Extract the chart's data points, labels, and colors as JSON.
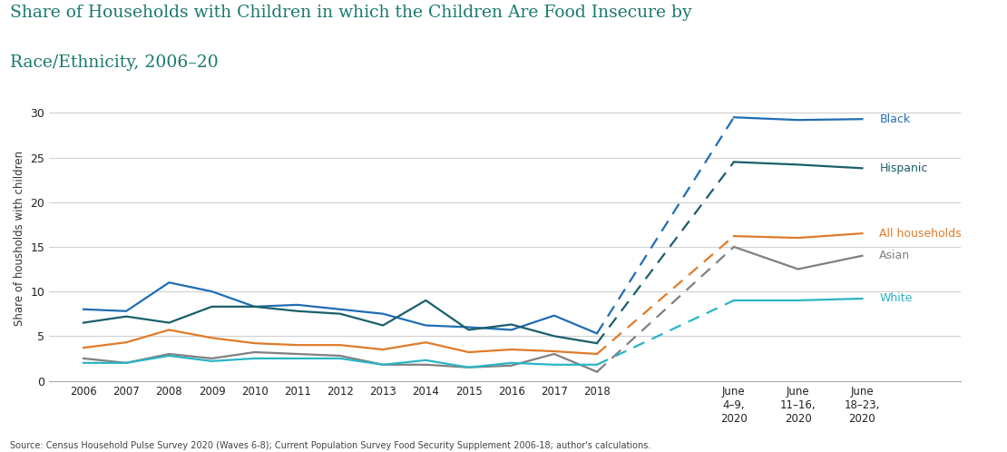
{
  "title_line1": "Share of Households with Children in which the Children Are Food Insecure by",
  "title_line2": "Race/Ethnicity, 2006–20",
  "ylabel": "Share of housholds with children",
  "source": "Source: Census Household Pulse Survey 2020 (Waves 6-8); Current Population Survey Food Security Supplement 2006-18; author's calculations.",
  "title_color": "#1a7a6e",
  "series": {
    "Black": {
      "color": "#1f6db5",
      "solid_values": [
        8.0,
        7.8,
        11.0,
        10.0,
        8.3,
        8.5,
        8.0,
        7.5,
        6.2,
        6.0,
        5.7,
        7.3,
        5.3
      ],
      "june_values": [
        29.5,
        29.2,
        29.3
      ],
      "label": "Black",
      "label_color": "#1f6db5"
    },
    "Hispanic": {
      "color": "#1a5f6a",
      "solid_values": [
        6.5,
        7.2,
        6.5,
        8.3,
        8.3,
        7.8,
        7.5,
        6.2,
        9.0,
        5.7,
        6.3,
        5.0,
        4.2
      ],
      "june_values": [
        24.5,
        24.2,
        23.8
      ],
      "label": "Hispanic",
      "label_color": "#1a5f6a"
    },
    "All_households": {
      "color": "#e07b2a",
      "solid_values": [
        3.7,
        4.3,
        5.7,
        4.8,
        4.2,
        4.0,
        4.0,
        3.5,
        4.3,
        3.2,
        3.5,
        3.3,
        3.0
      ],
      "june_values": [
        16.2,
        16.0,
        16.5
      ],
      "label": "All households",
      "label_color": "#e07b2a"
    },
    "Asian": {
      "color": "#808080",
      "solid_values": [
        2.5,
        2.0,
        3.0,
        2.5,
        3.2,
        3.0,
        2.8,
        1.8,
        1.8,
        1.5,
        1.7,
        3.0,
        1.0
      ],
      "june_values": [
        15.0,
        12.5,
        14.0
      ],
      "label": "Asian",
      "label_color": "#808080"
    },
    "White": {
      "color": "#2ab5c5",
      "solid_values": [
        2.0,
        2.0,
        2.8,
        2.2,
        2.5,
        2.5,
        2.5,
        1.8,
        2.3,
        1.5,
        2.0,
        1.8,
        1.8
      ],
      "june_values": [
        9.0,
        9.0,
        9.2
      ],
      "label": "White",
      "label_color": "#2ab5c5"
    }
  },
  "ylim": [
    0,
    32
  ],
  "yticks": [
    0,
    5,
    10,
    15,
    20,
    25,
    30
  ],
  "background_color": "#ffffff",
  "grid_color": "#d0d0d0"
}
